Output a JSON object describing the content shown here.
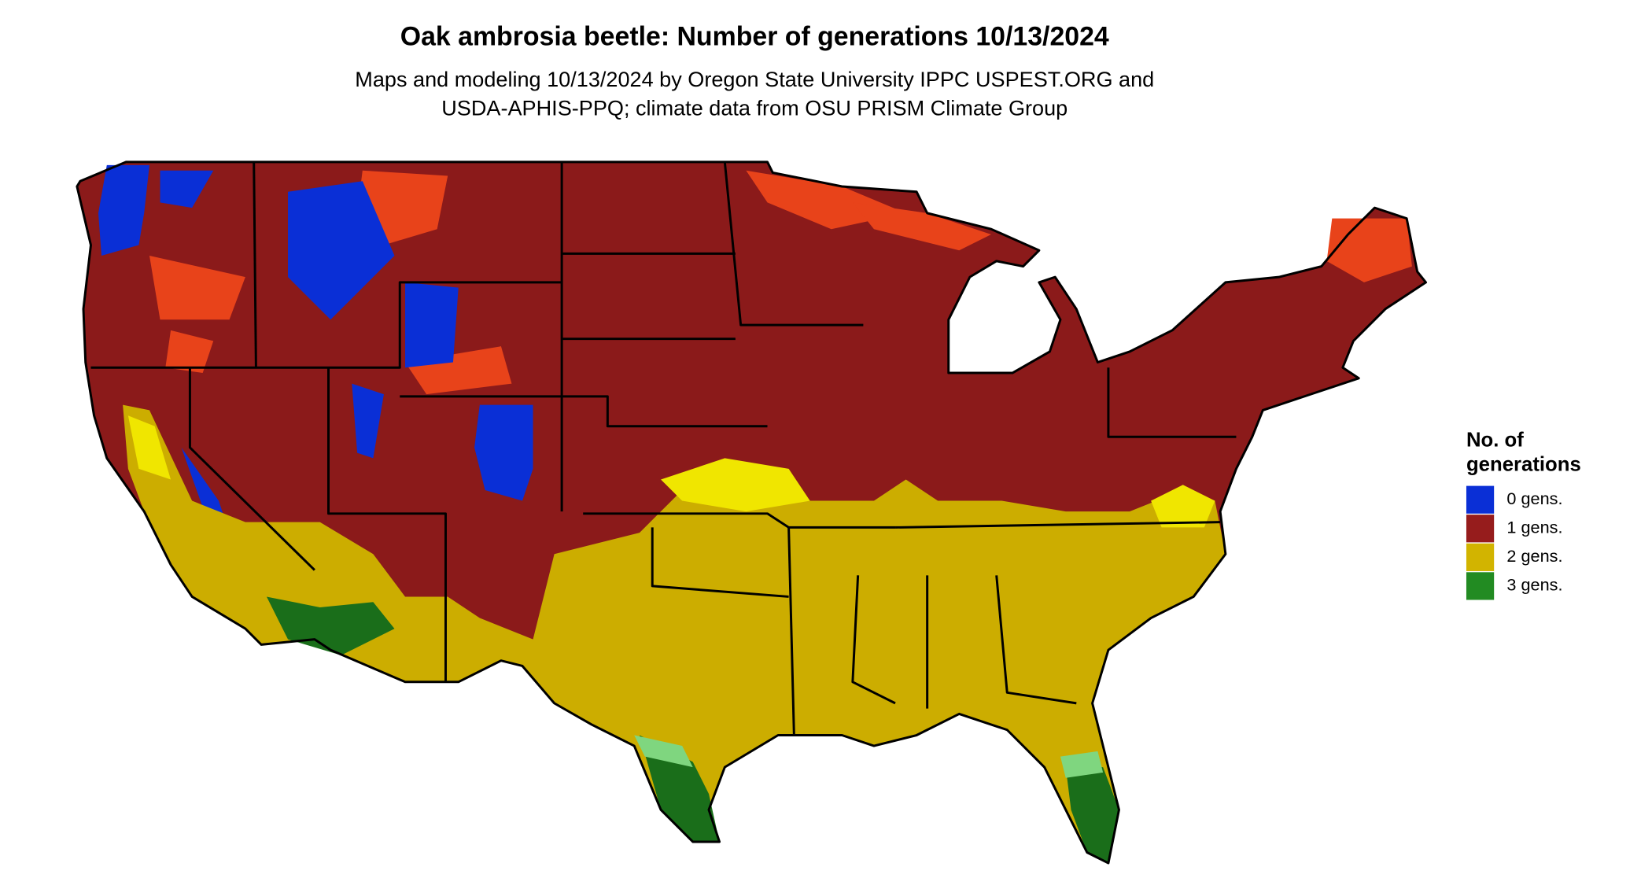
{
  "title": "Oak ambrosia beetle: Number of generations 10/13/2024",
  "subtitle": [
    "Maps and modeling 10/13/2024 by Oregon State University IPPC USPEST.ORG and",
    "USDA-APHIS-PPQ; climate data from OSU PRISM Climate Group"
  ],
  "legend": {
    "title": [
      "No. of",
      "generations"
    ],
    "items": [
      {
        "label": "0 gens.",
        "color": "#0a2fd6"
      },
      {
        "label": "1 gens.",
        "color": "#961c1c"
      },
      {
        "label": "2 gens.",
        "color": "#d2b400"
      },
      {
        "label": "3 gens.",
        "color": "#228b22"
      }
    ]
  }
}
